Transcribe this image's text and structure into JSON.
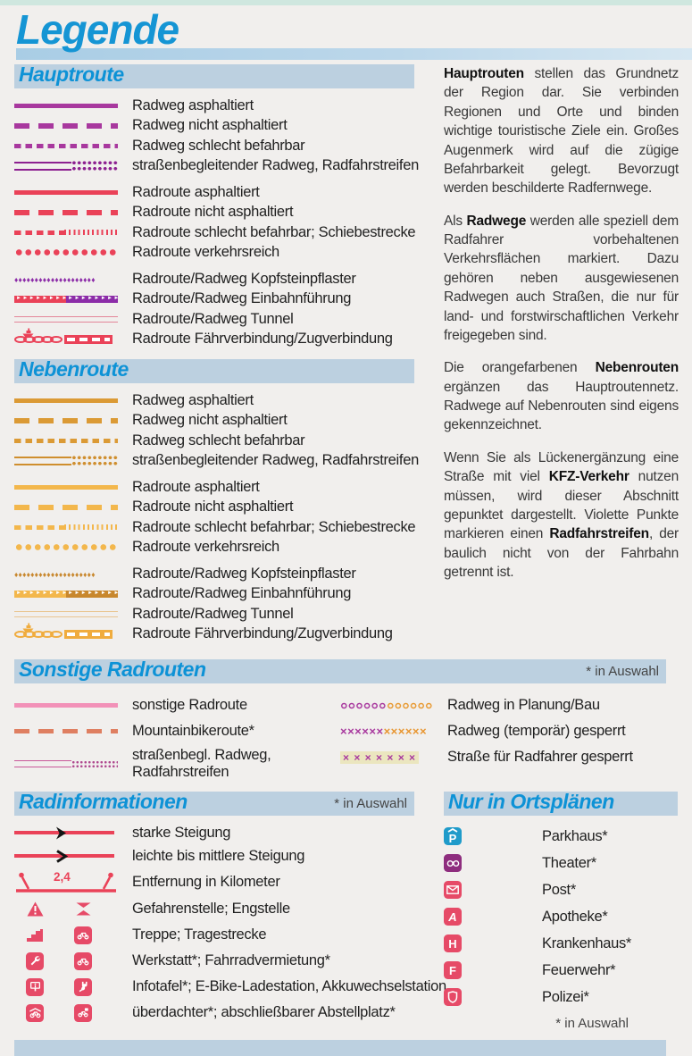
{
  "page": {
    "title": "Legende"
  },
  "colors": {
    "accent_blue": "#1595d4",
    "header_bar": "#bcd0e0",
    "haupt_radweg_purple": "#a8389e",
    "haupt_radroute_red": "#ea4258",
    "kopfstein_violet": "#8c2ca8",
    "neben_radweg_orange": "#db9a35",
    "neben_radroute_orange": "#f3b74c",
    "neben_dark_orange": "#c8872d",
    "sonstige_pink": "#f291b8",
    "mountainbike_salmon": "#df7f61",
    "icon_crimson": "#e64a67",
    "parkhaus_blue": "#1f9bca",
    "theater_purple": "#8e2d7e",
    "banned_band_beige": "#ebe6bf"
  },
  "sections": {
    "hauptroute": {
      "title": "Hauptroute",
      "items": [
        "Radweg asphaltiert",
        "Radweg nicht asphaltiert",
        "Radweg schlecht befahrbar",
        "straßenbegleitender Radweg, Radfahrstreifen",
        "Radroute asphaltiert",
        "Radroute nicht asphaltiert",
        "Radroute schlecht befahrbar; Schiebestrecke",
        "Radroute verkehrsreich",
        "Radroute/Radweg Kopfsteinpflaster",
        "Radroute/Radweg Einbahnführung",
        "Radroute/Radweg Tunnel",
        "Radroute Fährverbindung/Zugverbindung"
      ]
    },
    "nebenroute": {
      "title": "Nebenroute",
      "items": [
        "Radweg asphaltiert",
        "Radweg nicht asphaltiert",
        "Radweg schlecht befahrbar",
        "straßenbegleitender Radweg, Radfahrstreifen",
        "Radroute asphaltiert",
        "Radroute nicht asphaltiert",
        "Radroute schlecht befahrbar; Schiebestrecke",
        "Radroute verkehrsreich",
        "Radroute/Radweg Kopfsteinpflaster",
        "Radroute/Radweg Einbahnführung",
        "Radroute/Radweg Tunnel",
        "Radroute Fährverbindung/Zugverbindung"
      ]
    },
    "sonstige": {
      "title": "Sonstige Radrouten",
      "note": "* in Auswahl",
      "left_items": [
        "sonstige Radroute",
        "Mountainbikeroute*",
        "straßenbegl. Radweg, Radfahrstreifen"
      ],
      "right_items": [
        "Radweg in Planung/Bau",
        "Radweg (temporär) gesperrt",
        "Straße für Radfahrer gesperrt"
      ]
    },
    "radinfo": {
      "title": "Radinformationen",
      "note": "* in Auswahl",
      "distance_value": "2,4",
      "items": [
        {
          "label": "starke Steigung",
          "icons": [
            "steep-gradient-arrow"
          ]
        },
        {
          "label": "leichte bis mittlere Steigung",
          "icons": [
            "light-gradient-arrow"
          ]
        },
        {
          "label": "Entfernung in Kilometer",
          "icons": [
            "distance-marker"
          ]
        },
        {
          "label": "Gefahrenstelle; Engstelle",
          "icons": [
            "warning-triangle-icon",
            "narrow-passage-icon"
          ]
        },
        {
          "label": "Treppe; Tragestrecke",
          "icons": [
            "stairs-icon",
            "bike-carry-icon"
          ]
        },
        {
          "label": "Werkstatt*; Fahrradvermietung*",
          "icons": [
            "wrench-icon",
            "bike-rental-icon"
          ]
        },
        {
          "label": "Infotafel*; E-Bike-Ladestation, Akkuwechselstation",
          "icons": [
            "info-board-icon",
            "ebike-charging-icon"
          ]
        },
        {
          "label": "überdachter*; abschließbarer Abstellplatz*",
          "icons": [
            "covered-parking-icon",
            "lockable-parking-icon"
          ]
        }
      ]
    },
    "ortsplaene": {
      "title": "Nur in Ortsplänen",
      "note": "* in Auswahl",
      "items": [
        {
          "label": "Parkhaus*",
          "icon": "parking-garage-icon",
          "letter": "P"
        },
        {
          "label": "Theater*",
          "icon": "theater-icon",
          "letter": ""
        },
        {
          "label": "Post*",
          "icon": "post-icon",
          "letter": ""
        },
        {
          "label": "Apotheke*",
          "icon": "pharmacy-icon",
          "letter": "A"
        },
        {
          "label": "Krankenhaus*",
          "icon": "hospital-icon",
          "letter": "H"
        },
        {
          "label": "Feuerwehr*",
          "icon": "fire-station-icon",
          "letter": "F"
        },
        {
          "label": "Polizei*",
          "icon": "police-icon",
          "letter": ""
        }
      ]
    }
  },
  "paragraphs": [
    [
      {
        "b": true,
        "t": "Hauptrouten"
      },
      {
        "t": " stellen das Grundnetz der Region dar. Sie verbinden Regionen und Orte und binden wichtige touristische Ziele ein. Großes Augenmerk wird auf die zügige Befahrbarkeit gelegt. Bevorzugt werden beschilderte Radfernwege."
      }
    ],
    [
      {
        "t": "Als "
      },
      {
        "b": true,
        "t": "Radwege"
      },
      {
        "t": " werden alle speziell dem Radfahrer vorbehaltenen Verkehrsflächen markiert. Dazu gehören neben ausgewiesenen Radwegen auch Straßen, die nur für land- und forstwirschaftlichen Verkehr freigegeben sind."
      }
    ],
    [
      {
        "t": "Die orangefarbenen "
      },
      {
        "b": true,
        "t": "Nebenrouten"
      },
      {
        "t": " ergänzen das Hauptroutennetz. Radwege auf Nebenrouten sind eigens gekennzeichnet."
      }
    ],
    [
      {
        "t": "Wenn Sie als Lückenergänzung eine Straße mit viel "
      },
      {
        "b": true,
        "t": "KFZ-Verkehr"
      },
      {
        "t": " nutzen müssen, wird dieser Abschnitt gepunktet dargestellt. Violette Punkte markieren einen "
      },
      {
        "b": true,
        "t": "Radfahrstreifen"
      },
      {
        "t": ", der baulich nicht von der Fahrbahn getrennt ist."
      }
    ]
  ]
}
